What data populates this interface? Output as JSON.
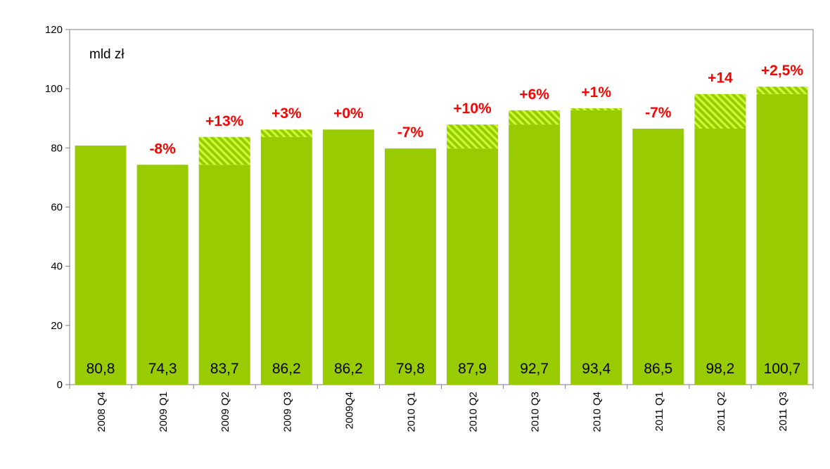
{
  "chart_data": {
    "type": "bar",
    "unit_label": "mld zł",
    "ylim": [
      0,
      120
    ],
    "yticks": [
      "0",
      "20",
      "40",
      "60",
      "80",
      "100",
      "120"
    ],
    "categories": [
      "2008 Q4",
      "2009 Q1",
      "2009 Q2",
      "2009 Q3",
      "2009Q4",
      "2010 Q1",
      "2010 Q2",
      "2010 Q3",
      "2010 Q4",
      "2011 Q1",
      "2011 Q2",
      "2011 Q3"
    ],
    "values": [
      80.8,
      74.3,
      83.7,
      86.2,
      86.2,
      79.8,
      87.9,
      92.7,
      93.4,
      86.5,
      98.2,
      100.7
    ],
    "value_labels": [
      "80,8",
      "74,3",
      "83,7",
      "86,2",
      "86,2",
      "79,8",
      "87,9",
      "92,7",
      "93,4",
      "86,5",
      "98,2",
      "100,7"
    ],
    "change_labels": [
      "",
      "-8%",
      "+13%",
      "+3%",
      "+0%",
      "-7%",
      "+10%",
      "+6%",
      "+1%",
      "-7%",
      "+14",
      "+2,5%"
    ],
    "colors": {
      "bar": "#99cc00",
      "hatch": "#ccff33",
      "change": "#ff0000"
    }
  }
}
